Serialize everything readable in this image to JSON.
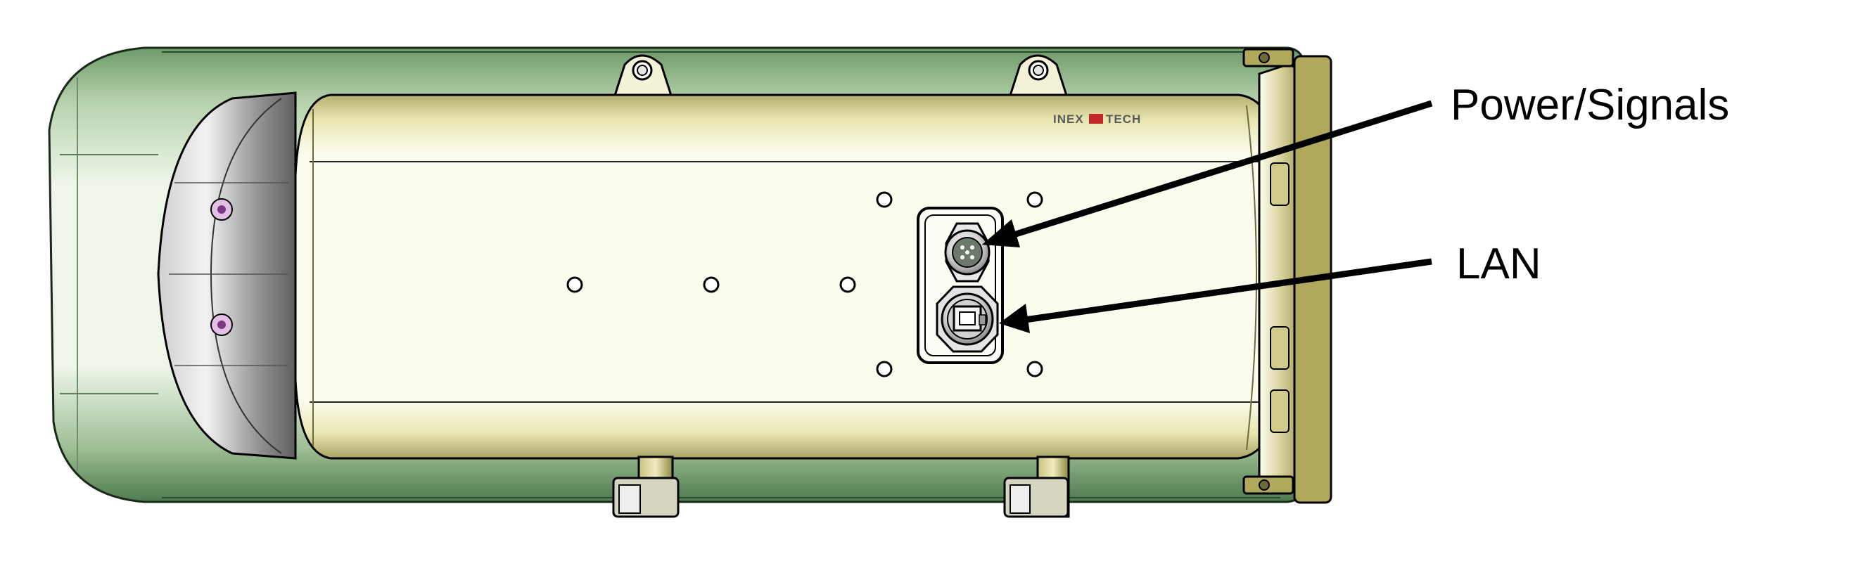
{
  "callouts": {
    "power_signals": "Power/Signals",
    "lan": "LAN"
  },
  "logo": {
    "left": "INEX",
    "right": "TECH"
  },
  "colors": {
    "housing_green": "#5f8c5f",
    "housing_green_light": "#a8c6a0",
    "body_cream": "#e8e6b0",
    "body_cream_light": "#fbfbe8",
    "hood_grey": "#8a8a8a",
    "bracket_olive": "#a8a050",
    "logo_red": "#c0282c",
    "outline": "#000000"
  }
}
